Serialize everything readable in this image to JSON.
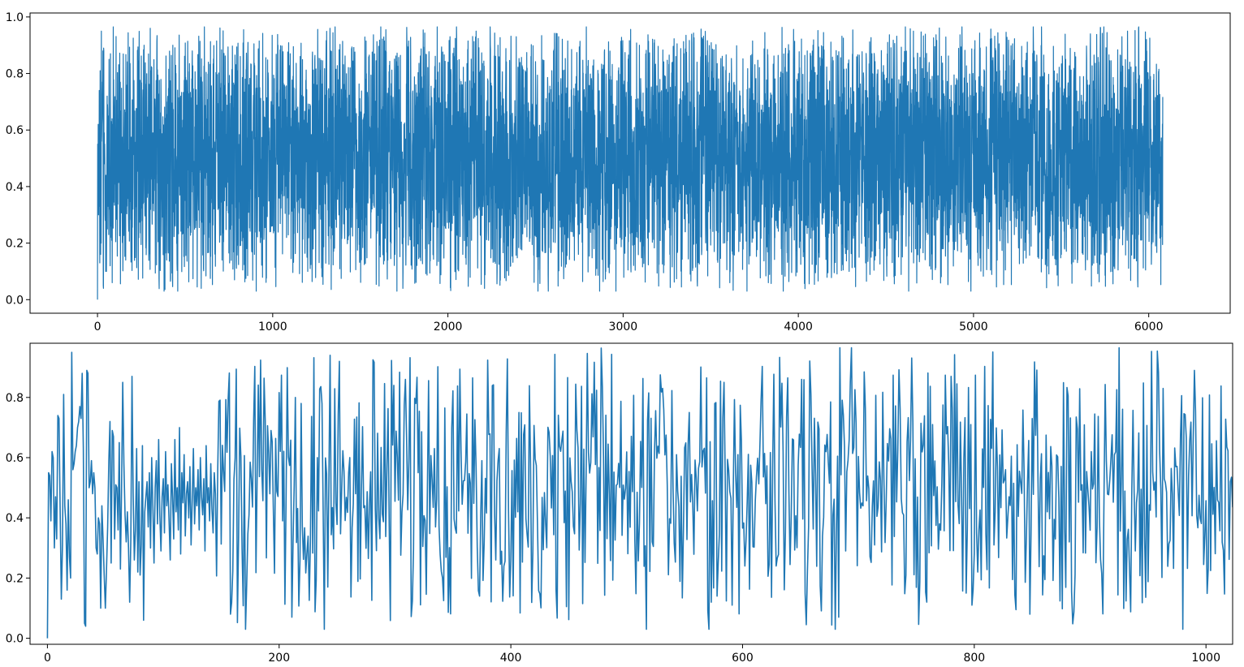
{
  "chart_data": [
    {
      "type": "line",
      "title": "",
      "xlabel": "",
      "ylabel": "",
      "series_color": "#1f77b4",
      "x_range": [
        0,
        6080
      ],
      "xlim": [
        -385,
        6465
      ],
      "ylim": [
        -0.048,
        1.014
      ],
      "x_ticks": [
        0,
        1000,
        2000,
        3000,
        4000,
        5000,
        6000
      ],
      "x_tick_labels": [
        "0",
        "1000",
        "2000",
        "3000",
        "4000",
        "5000",
        "6000"
      ],
      "y_ticks": [
        0.0,
        0.2,
        0.4,
        0.6,
        0.8,
        1.0
      ],
      "y_tick_labels": [
        "0.0",
        "0.2",
        "0.4",
        "0.6",
        "0.8",
        "1.0"
      ],
      "series": [
        {
          "x_step": 1,
          "values_note_summary": "dense noise signal ~6080 samples, values in [0, 0.97], mean ~0.5",
          "values": [
            0.0,
            0.55,
            0.52,
            0.38,
            0.62,
            0.6,
            0.3,
            0.46,
            0.33,
            0.47,
            0.74,
            0.73,
            0.42,
            0.13,
            0.31,
            0.81,
            0.44,
            0.38,
            0.16,
            0.46,
            0.27,
            0.2,
            0.95,
            0.56,
            0.58,
            0.62,
            0.64,
            0.7,
            0.72,
            0.77,
            0.73,
            0.88,
            0.63,
            0.05,
            0.04,
            0.89,
            0.88,
            0.5,
            0.52,
            0.59,
            0.48,
            0.55,
            0.5,
            0.3,
            0.28,
            0.4,
            0.38,
            0.1,
            0.44,
            0.33,
            0.21,
            0.1,
            0.23,
            0.37,
            0.59,
            0.72,
            0.25,
            0.69,
            0.67,
            0.33,
            0.51,
            0.5,
            0.36,
            0.65,
            0.23,
            0.5,
            0.85,
            0.58,
            0.41,
            0.32,
            0.42,
            0.3,
            0.12,
            0.33,
            0.87,
            0.48,
            0.26,
            0.36,
            0.63,
            0.22,
            0.52,
            0.21,
            0.31,
            0.64,
            0.06,
            0.42,
            0.47
          ]
        }
      ]
    },
    {
      "type": "line",
      "title": "",
      "xlabel": "",
      "ylabel": "",
      "series_color": "#1f77b4",
      "x_range": [
        0,
        1023
      ],
      "xlim": [
        -15,
        1023
      ],
      "ylim": [
        -0.02,
        0.98
      ],
      "x_ticks": [
        0,
        200,
        400,
        600,
        800,
        1000
      ],
      "x_tick_labels": [
        "0",
        "200",
        "400",
        "600",
        "800",
        "1000"
      ],
      "y_ticks": [
        0.0,
        0.2,
        0.4,
        0.6,
        0.8
      ],
      "y_tick_labels": [
        "0.0",
        "0.2",
        "0.4",
        "0.6",
        "0.8"
      ],
      "series": [
        {
          "x_step": 1,
          "values": [
            0.0,
            0.55,
            0.54,
            0.39,
            0.62,
            0.6,
            0.3,
            0.47,
            0.33,
            0.74,
            0.73,
            0.42,
            0.13,
            0.31,
            0.81,
            0.44,
            0.38,
            0.16,
            0.46,
            0.27,
            0.2,
            0.95,
            0.56,
            0.58,
            0.62,
            0.64,
            0.7,
            0.72,
            0.77,
            0.73,
            0.88,
            0.63,
            0.05,
            0.04,
            0.89,
            0.88,
            0.5,
            0.52,
            0.59,
            0.48,
            0.55,
            0.5,
            0.3,
            0.28,
            0.4,
            0.38,
            0.1,
            0.44,
            0.33,
            0.21,
            0.1,
            0.23,
            0.37,
            0.59,
            0.72,
            0.25,
            0.69,
            0.67,
            0.33,
            0.51,
            0.5,
            0.36,
            0.65,
            0.23,
            0.5,
            0.85,
            0.58,
            0.41,
            0.32,
            0.42,
            0.3,
            0.12,
            0.33,
            0.87,
            0.48,
            0.26,
            0.36,
            0.63,
            0.22,
            0.52,
            0.21,
            0.31,
            0.64,
            0.06,
            0.42,
            0.47,
            0.52,
            0.37,
            0.55,
            0.3,
            0.6,
            0.44,
            0.25,
            0.5,
            0.59,
            0.38,
            0.66,
            0.41,
            0.29,
            0.47,
            0.53,
            0.35,
            0.62,
            0.44,
            0.51,
            0.39,
            0.26,
            0.58,
            0.47,
            0.33,
            0.66,
            0.42,
            0.5,
            0.36,
            0.7,
            0.28,
            0.55,
            0.45,
            0.61,
            0.34,
            0.48,
            0.52,
            0.4,
            0.57,
            0.31,
            0.46,
            0.63,
            0.38,
            0.5,
            0.44,
            0.56,
            0.36,
            0.6,
            0.47,
            0.41,
            0.53,
            0.29,
            0.64,
            0.45,
            0.5,
            0.39,
            0.58,
            0.43,
            0.35,
            0.55,
            0.48
          ]
        }
      ]
    }
  ]
}
